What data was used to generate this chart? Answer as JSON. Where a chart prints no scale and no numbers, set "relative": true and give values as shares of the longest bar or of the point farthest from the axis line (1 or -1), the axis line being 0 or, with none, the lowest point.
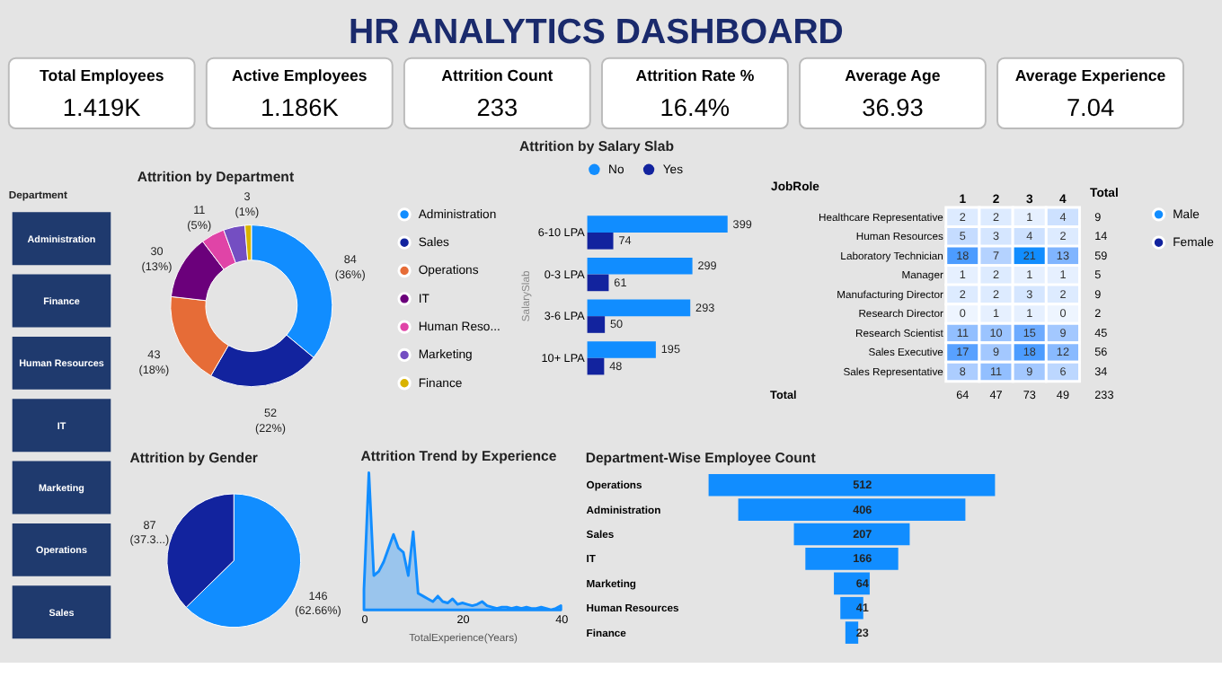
{
  "chart_data": [
    {
      "type": "other",
      "title": "HR ANALYTICS DASHBOARD",
      "annotations": [
        "Total Employees",
        "1.419K",
        "Active Employees",
        "1.186K",
        "Attrition Count",
        "233",
        "Attrition Rate %",
        "16.4%",
        "Average Age",
        "36.93",
        "Average Experience",
        "7.04"
      ]
    },
    {
      "type": "other",
      "title": "Department",
      "annotations": [
        "Administration",
        "Finance",
        "Human Resources",
        "IT",
        "Marketing",
        "Operations",
        "Sales"
      ]
    },
    {
      "type": "donut",
      "title": "Attrition by Department",
      "categories": [
        "Administration",
        "Sales",
        "Operations",
        "IT",
        "Human Reso...",
        "Marketing",
        "Finance"
      ],
      "values": [
        84,
        52,
        43,
        30,
        11,
        10,
        3
      ],
      "colors": [
        "#118dff",
        "#12239e",
        "#e66c37",
        "#6b007b",
        "#e044a7",
        "#744ec2",
        "#d9b300"
      ],
      "value_labels": [
        "84 (36%)",
        "52 (22%)",
        "43 (18%)",
        "30 (13%)",
        "11 (5%)",
        null,
        "3 (1%)"
      ],
      "legend": "right"
    },
    {
      "type": "bar",
      "orientation": "horizontal",
      "title": "Attrition by Salary Slab",
      "ylabel": "SalarySlab",
      "categories": [
        "6-10 LPA",
        "0-3 LPA",
        "3-6 LPA",
        "10+ LPA"
      ],
      "series": [
        {
          "name": "No",
          "color": "#118dff",
          "values": [
            399,
            299,
            293,
            195
          ]
        },
        {
          "name": "Yes",
          "color": "#12239e",
          "values": [
            74,
            61,
            50,
            48
          ]
        }
      ],
      "data_labels": true,
      "legend": "top"
    },
    {
      "type": "heatmap",
      "ylabel": "JobRole",
      "y2label": "Total",
      "categories": [
        "1",
        "2",
        "3",
        "4"
      ],
      "y_categories": [
        "Healthcare Representative",
        "Human Resources",
        "Laboratory Technician",
        "Manager",
        "Manufacturing Director",
        "Research Director",
        "Research Scientist",
        "Sales Executive",
        "Sales Representative"
      ],
      "y2_categories": [
        "9",
        "14",
        "59",
        "5",
        "9",
        "2",
        "45",
        "56",
        "34"
      ],
      "cells": [
        [
          2,
          2,
          1,
          4
        ],
        [
          5,
          3,
          4,
          2
        ],
        [
          18,
          7,
          21,
          13
        ],
        [
          1,
          2,
          1,
          1
        ],
        [
          2,
          2,
          3,
          2
        ],
        [
          0,
          1,
          1,
          0
        ],
        [
          11,
          10,
          15,
          9
        ],
        [
          17,
          9,
          18,
          12
        ],
        [
          8,
          11,
          9,
          6
        ]
      ],
      "data_labels": true,
      "annotations": [
        "Total",
        "64",
        "47",
        "73",
        "49",
        "233"
      ]
    },
    {
      "type": "pie",
      "title": "Attrition by Gender",
      "categories": [
        "Male",
        "Female"
      ],
      "values": [
        146,
        87
      ],
      "colors": [
        "#118dff",
        "#12239e"
      ],
      "value_labels": [
        "146 (62.66%)",
        "87 (37.3...)"
      ],
      "legend": "right"
    },
    {
      "type": "area",
      "title": "Attrition Trend by Experience",
      "xlabel": "TotalExperience(Years)",
      "relative": true,
      "color": "#118dff",
      "x": [
        0,
        1,
        2,
        3,
        4,
        5,
        6,
        7,
        8,
        9,
        10,
        11,
        12,
        13,
        14,
        15,
        16,
        17,
        18,
        19,
        20,
        21,
        22,
        23,
        24,
        25,
        26,
        27,
        28,
        29,
        30,
        31,
        32,
        33,
        34,
        35,
        36,
        37,
        38,
        39,
        40
      ],
      "values": [
        0.15,
        1.0,
        0.25,
        0.28,
        0.35,
        0.45,
        0.55,
        0.45,
        0.42,
        0.25,
        0.57,
        0.12,
        0.1,
        0.08,
        0.06,
        0.1,
        0.06,
        0.05,
        0.08,
        0.04,
        0.05,
        0.04,
        0.03,
        0.04,
        0.06,
        0.03,
        0.02,
        0.01,
        0.02,
        0.02,
        0.01,
        0.02,
        0.01,
        0.02,
        0.01,
        0.01,
        0.02,
        0.01,
        0.0,
        0.01,
        0.03
      ],
      "xlim": [
        0,
        40
      ],
      "xticks": [
        0,
        20,
        40
      ]
    },
    {
      "type": "other",
      "title": "Department-Wise Employee Count",
      "categories": [
        "Operations",
        "Administration",
        "Sales",
        "IT",
        "Marketing",
        "Human Resources",
        "Finance"
      ],
      "values": [
        512,
        406,
        207,
        166,
        64,
        41,
        23
      ],
      "color": "#118dff",
      "data_labels": true
    }
  ]
}
